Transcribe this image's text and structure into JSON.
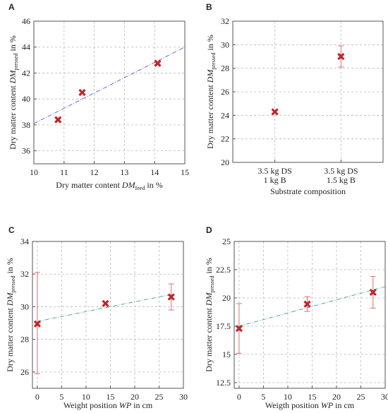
{
  "colors": {
    "marker": "#c0272d",
    "error_bar": "#e07070",
    "trend_a": "#7b5fbf",
    "trend_cd": "#5aa3a8",
    "grid": "#b9b9b9"
  },
  "chart_data": [
    {
      "panel": "A",
      "type": "scatter",
      "xlabel": "Dry matter content DMfeed in %",
      "xlabel_parts": {
        "pre": "Dry matter content ",
        "var": "DM",
        "sub": "feed",
        "post": " in %"
      },
      "ylabel": "Dry matter content DMpressed in %",
      "ylabel_parts": {
        "pre": "Dry matter content ",
        "var": "DM",
        "sub": "pressed",
        "post": " in %"
      },
      "xlim": [
        10,
        15
      ],
      "ylim": [
        35,
        46
      ],
      "xticks": [
        10,
        11,
        12,
        13,
        14,
        15
      ],
      "yticks": [
        36,
        38,
        40,
        42,
        44,
        46
      ],
      "grid": true,
      "points": [
        {
          "x": 10.8,
          "y": 38.4
        },
        {
          "x": 11.6,
          "y": 40.5
        },
        {
          "x": 14.1,
          "y": 42.75
        }
      ],
      "trendline": {
        "x": [
          10,
          15
        ],
        "y": [
          38.1,
          44.0
        ]
      }
    },
    {
      "panel": "B",
      "type": "scatter",
      "xlabel": "Substrate composition",
      "ylabel": "Dry matter content DMpressed in %",
      "ylabel_parts": {
        "pre": "Dry matter content ",
        "var": "DM",
        "sub": "pressed",
        "post": " in %"
      },
      "categories": [
        [
          "3.5 kg DS",
          "1 kg B"
        ],
        [
          "3.5 kg DS",
          "1.5 kg B"
        ]
      ],
      "ylim": [
        20,
        32
      ],
      "yticks": [
        20,
        22,
        24,
        26,
        28,
        30,
        32
      ],
      "grid": true,
      "points": [
        {
          "category": 0,
          "y": 24.3,
          "err": null
        },
        {
          "category": 1,
          "y": 29.0,
          "err": [
            28.1,
            29.9
          ]
        }
      ]
    },
    {
      "panel": "C",
      "type": "scatter",
      "xlabel": "Weight position WP in cm",
      "xlabel_parts": {
        "pre": "Weight position ",
        "var": "WP",
        "sub": "",
        "post": " in cm"
      },
      "ylabel": "Dry matter content DMpressed in %",
      "ylabel_parts": {
        "pre": "Dry matter content ",
        "var": "DM",
        "sub": "pressed",
        "post": " in %"
      },
      "xlim": [
        -1,
        30
      ],
      "ylim": [
        25,
        34
      ],
      "xticks": [
        0,
        5,
        10,
        15,
        20,
        25,
        30
      ],
      "yticks": [
        26,
        28,
        30,
        32,
        34
      ],
      "grid": true,
      "points": [
        {
          "x": 0,
          "y": 28.95,
          "err": [
            25.9,
            32.1
          ]
        },
        {
          "x": 14,
          "y": 30.2,
          "err": null
        },
        {
          "x": 27.5,
          "y": 30.6,
          "err": [
            29.8,
            31.4
          ]
        }
      ],
      "trendline": {
        "x": [
          0,
          27.5
        ],
        "y": [
          29.1,
          30.75
        ]
      }
    },
    {
      "panel": "D",
      "type": "scatter",
      "xlabel": "Weigth position WP in cm",
      "xlabel_parts": {
        "pre": "Weigth position ",
        "var": "WP",
        "sub": "",
        "post": " in cm"
      },
      "ylabel": "Dry matter content DMpressed in %",
      "ylabel_parts": {
        "pre": "Dry matter content ",
        "var": "DM",
        "sub": "pressed",
        "post": " in %"
      },
      "xlim": [
        -1,
        30
      ],
      "ylim": [
        12,
        25
      ],
      "xticks": [
        0,
        5,
        10,
        15,
        20,
        25,
        30
      ],
      "yticks": [
        12.5,
        15,
        17.5,
        20,
        22.5,
        25
      ],
      "ytick_labels": [
        "12.5",
        "15",
        "17.5",
        "20",
        "22.5",
        "25"
      ],
      "grid": true,
      "points": [
        {
          "x": 0,
          "y": 17.3,
          "err": [
            15.1,
            19.5
          ]
        },
        {
          "x": 14,
          "y": 19.45,
          "err": [
            18.8,
            20.1
          ]
        },
        {
          "x": 27.5,
          "y": 20.5,
          "err": [
            19.1,
            21.9
          ]
        }
      ],
      "trendline": {
        "x": [
          0,
          30
        ],
        "y": [
          17.5,
          21.0
        ]
      }
    }
  ]
}
